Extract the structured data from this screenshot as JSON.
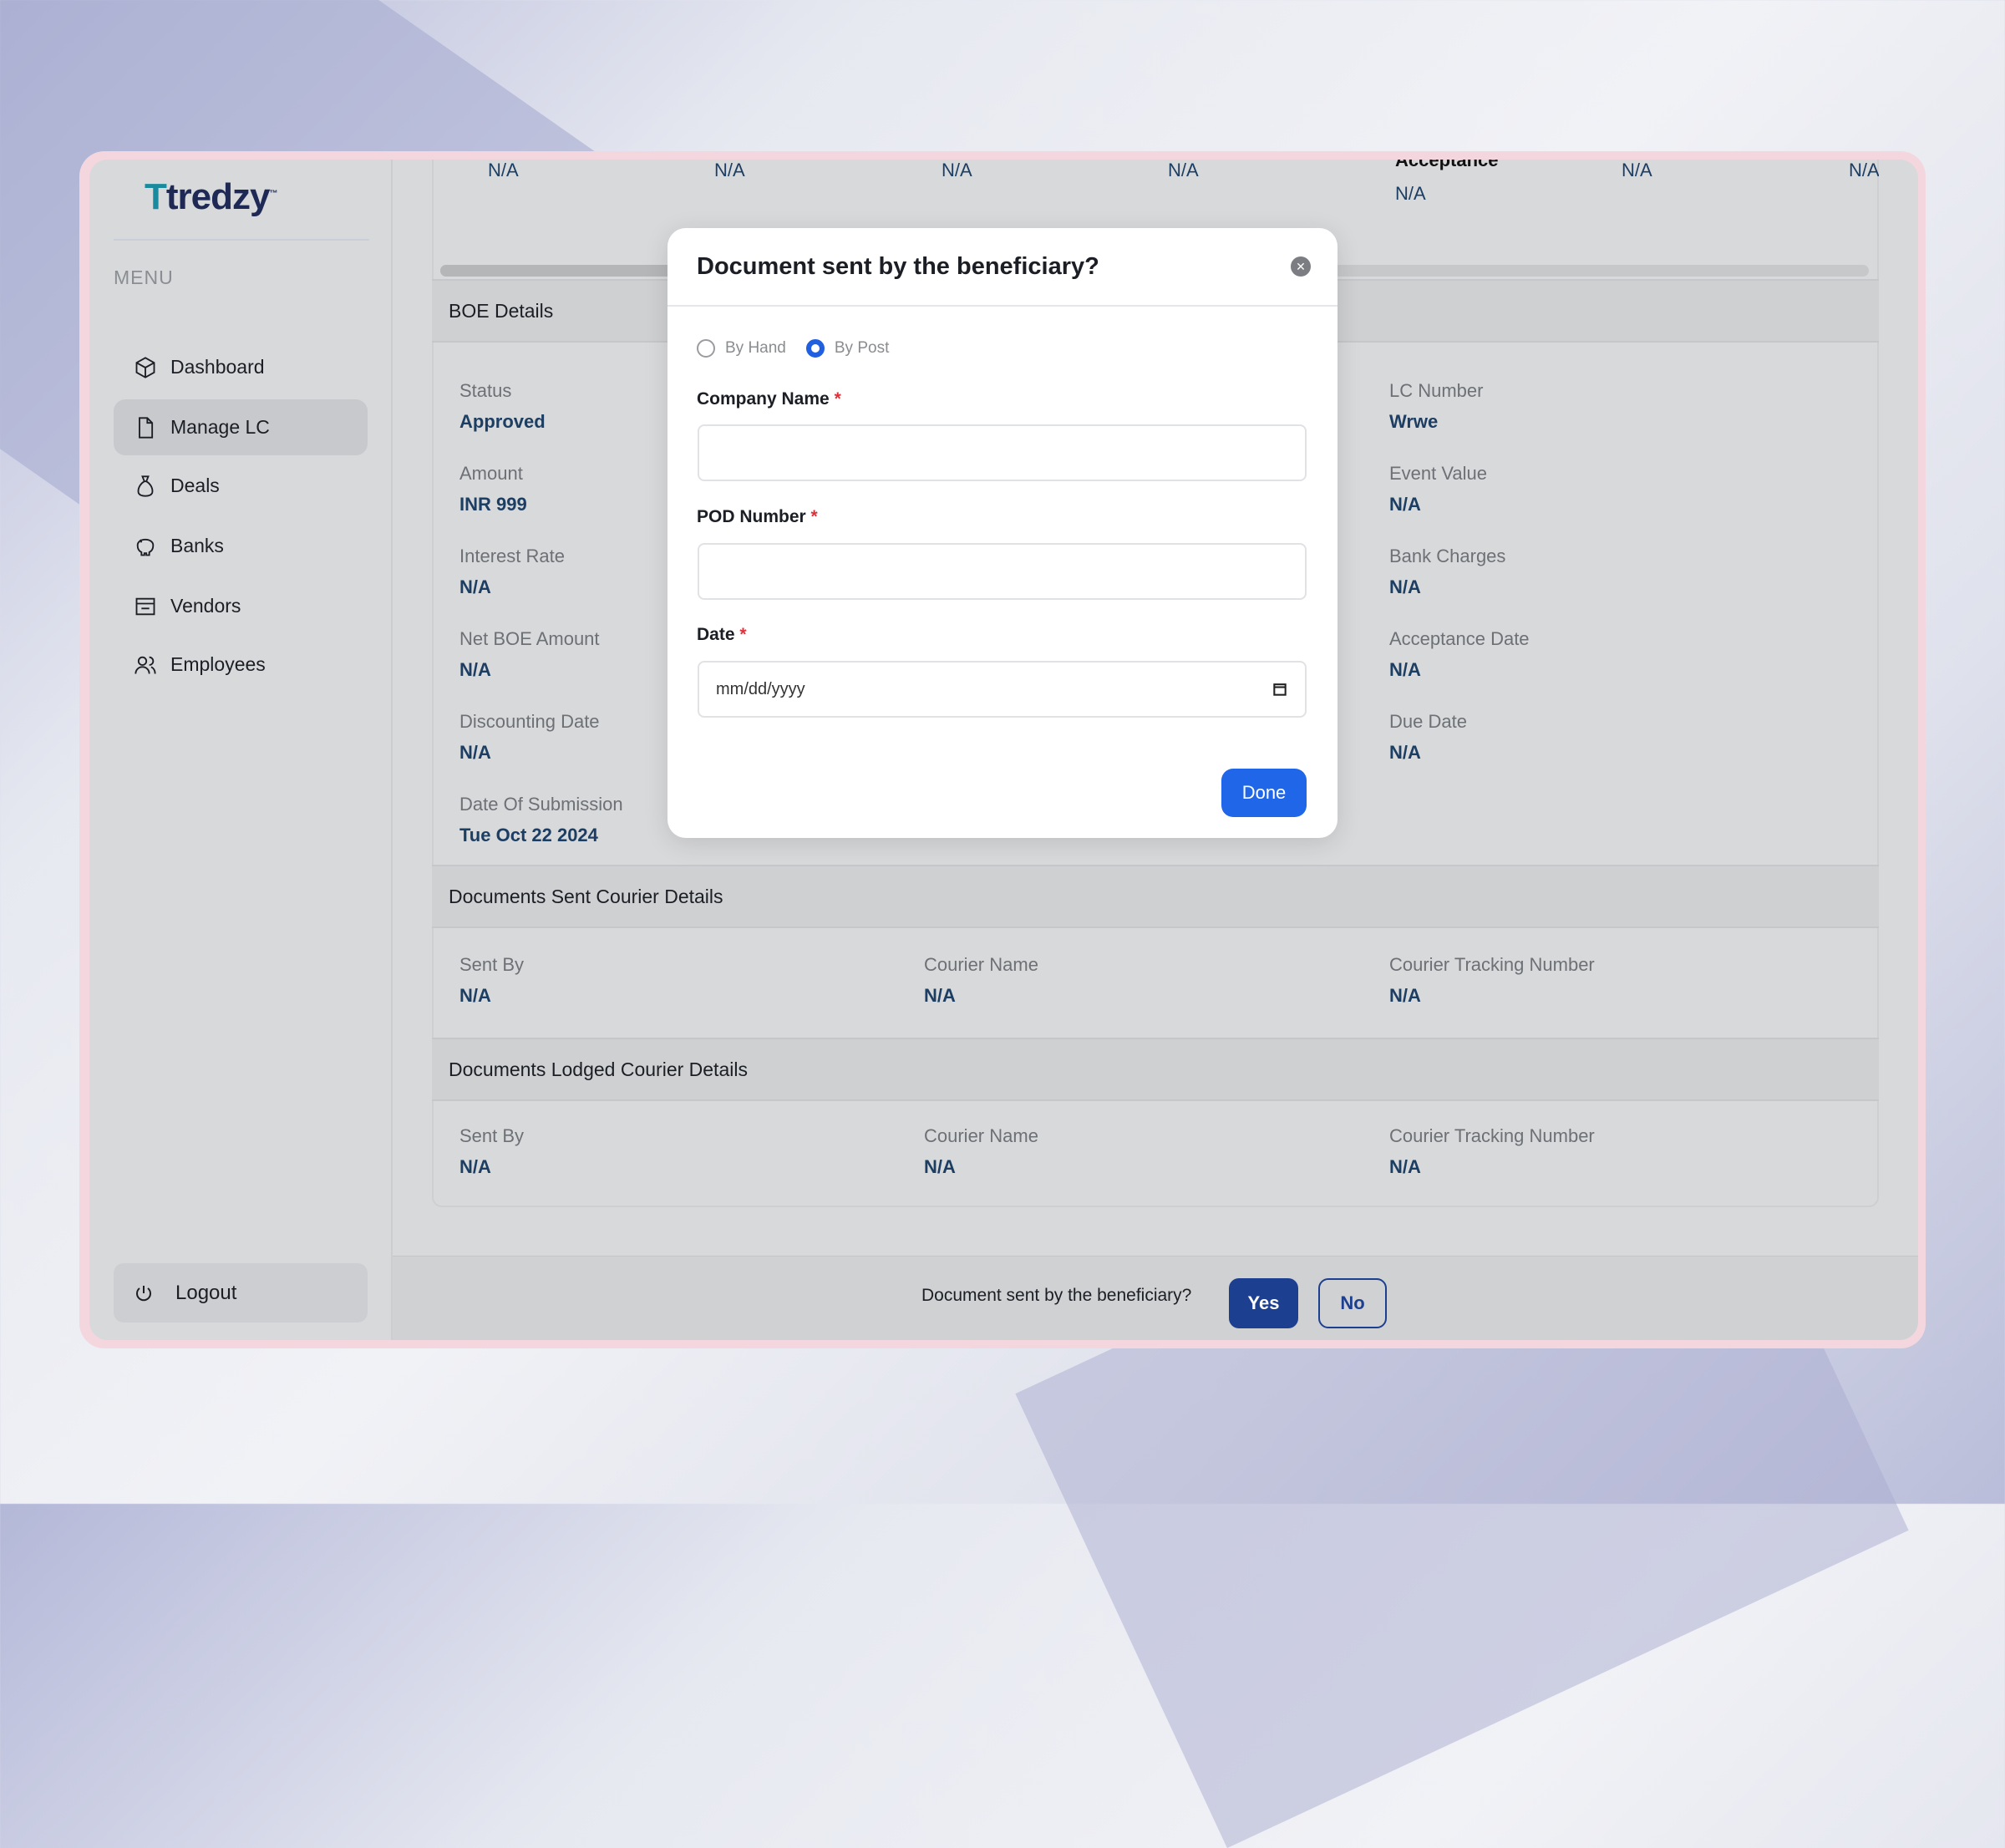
{
  "brand": {
    "name": "tredzy",
    "tm": "™"
  },
  "sidebar": {
    "menu_label": "MENU",
    "items": [
      {
        "label": "Dashboard",
        "icon": "cube-icon"
      },
      {
        "label": "Manage LC",
        "icon": "document-icon",
        "active": true
      },
      {
        "label": "Deals",
        "icon": "money-bag-icon"
      },
      {
        "label": "Banks",
        "icon": "piggy-bank-icon"
      },
      {
        "label": "Vendors",
        "icon": "store-icon"
      },
      {
        "label": "Employees",
        "icon": "users-icon"
      }
    ],
    "logout": "Logout"
  },
  "top_row": {
    "values": [
      "N/A",
      "N/A",
      "N/A",
      "N/A",
      "N/A",
      "N/A",
      "N/A"
    ],
    "acceptance_label": "Acceptance",
    "acceptance_value": "N/A"
  },
  "boe": {
    "title": "BOE Details",
    "left": [
      {
        "label": "Status",
        "value": "Approved"
      },
      {
        "label": "Amount",
        "value": "INR 999"
      },
      {
        "label": "Interest Rate",
        "value": "N/A"
      },
      {
        "label": "Net BOE Amount",
        "value": "N/A"
      },
      {
        "label": "Discounting Date",
        "value": "N/A"
      },
      {
        "label": "Date Of Submission",
        "value": "Tue Oct 22 2024"
      }
    ],
    "right": [
      {
        "label": "LC Number",
        "value": "Wrwe"
      },
      {
        "label": "Event Value",
        "value": "N/A"
      },
      {
        "label": "Bank Charges",
        "value": "N/A"
      },
      {
        "label": "Acceptance Date",
        "value": "N/A"
      },
      {
        "label": "Due Date",
        "value": "N/A"
      }
    ]
  },
  "sent": {
    "title": "Documents Sent Courier Details",
    "fields": [
      {
        "label": "Sent By",
        "value": "N/A"
      },
      {
        "label": "Courier Name",
        "value": "N/A"
      },
      {
        "label": "Courier Tracking Number",
        "value": "N/A"
      }
    ]
  },
  "lodged": {
    "title": "Documents Lodged Courier Details",
    "fields": [
      {
        "label": "Sent By",
        "value": "N/A"
      },
      {
        "label": "Courier Name",
        "value": "N/A"
      },
      {
        "label": "Courier Tracking Number",
        "value": "N/A"
      }
    ]
  },
  "footer": {
    "question": "Document sent by the beneficiary?",
    "yes": "Yes",
    "no": "No"
  },
  "modal": {
    "title": "Document sent by the beneficiary?",
    "radio_by_hand": "By Hand",
    "radio_by_post": "By Post",
    "selected": "By Post",
    "company_label": "Company Name",
    "company_value": "",
    "pod_label": "POD Number",
    "pod_value": "",
    "date_label": "Date",
    "date_placeholder": "mm/dd/yyyy",
    "required": "*",
    "done": "Done"
  },
  "colors": {
    "accent": "#1f66e8",
    "primary_dark": "#1c3f8f",
    "value_text": "#1d3e63",
    "required": "#e0313b"
  }
}
